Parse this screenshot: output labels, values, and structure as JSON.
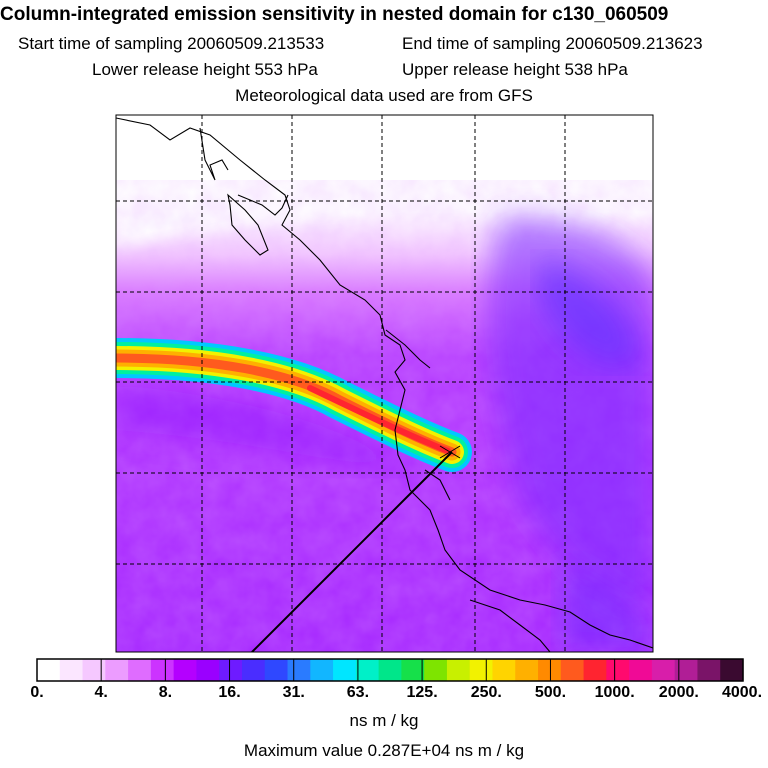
{
  "header": {
    "title": "Column-integrated emission sensitivity in nested domain for c130_060509",
    "start_label": "Start time of sampling 20060509.213533",
    "end_label": "End time of sampling 20060509.213623",
    "lower_label": "Lower release height  553 hPa",
    "upper_label": "Upper release height  538 hPa",
    "met_label": "Meteorological data used are from GFS"
  },
  "colorbar": {
    "labels": [
      "0.",
      "4.",
      "8.",
      "16.",
      "31.",
      "63.",
      "125.",
      "250.",
      "500.",
      "1000.",
      "2000.",
      "4000."
    ],
    "colors": [
      "#ffffff",
      "#fbe6ff",
      "#f5c8ff",
      "#ec9cff",
      "#df6cff",
      "#cc33ff",
      "#b400ff",
      "#9a00ff",
      "#6e1bff",
      "#4a2dff",
      "#2f48ff",
      "#2a7bff",
      "#12b6ff",
      "#00e6ff",
      "#00f0c8",
      "#00e68a",
      "#16e04a",
      "#7ee400",
      "#c8f000",
      "#f2f200",
      "#ffd400",
      "#ffb000",
      "#ff8a00",
      "#ff5a1e",
      "#ff2430",
      "#ff0a6e",
      "#f00a96",
      "#d81eaa",
      "#b01e96",
      "#7a1468",
      "#3a0a30"
    ],
    "unit": "ns m / kg"
  },
  "footer": {
    "max_value": "Maximum value  0.287E+04 ns m / kg"
  }
}
